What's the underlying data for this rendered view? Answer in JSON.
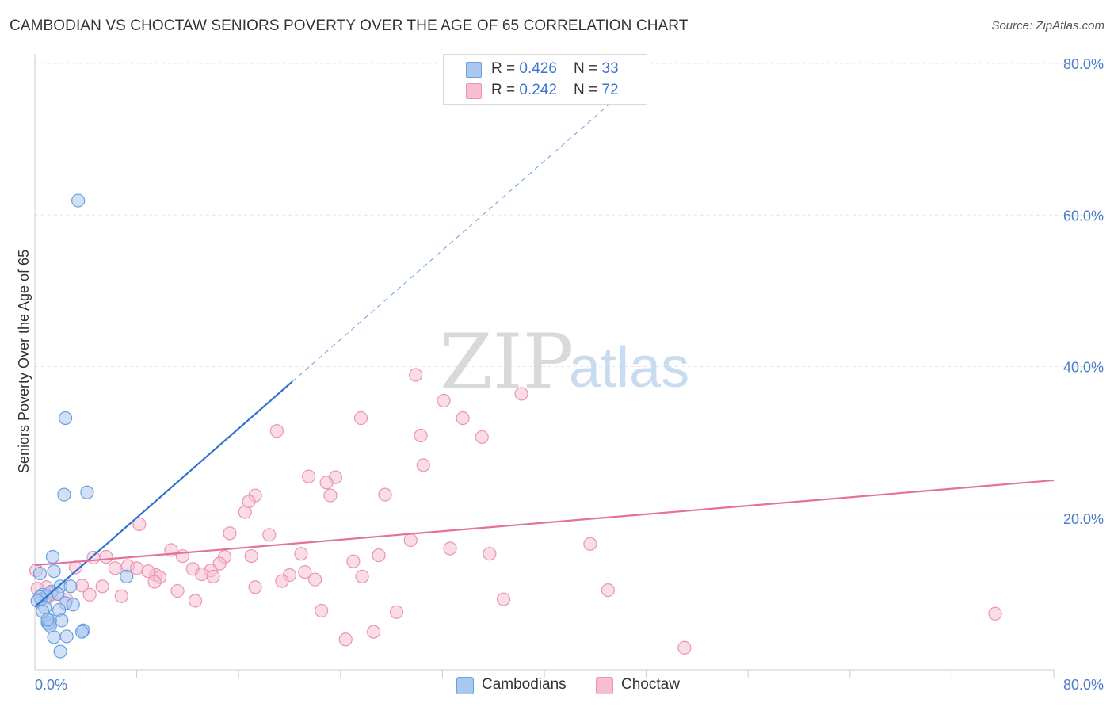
{
  "header": {
    "title": "CAMBODIAN VS CHOCTAW SENIORS POVERTY OVER THE AGE OF 65 CORRELATION CHART",
    "source": "Source: ZipAtlas.com"
  },
  "watermark": {
    "zip": "ZIP",
    "atlas": "atlas"
  },
  "legend": {
    "cambodians": {
      "r_label": "R = ",
      "r_value": "0.426",
      "n_label": "N = ",
      "n_value": "33"
    },
    "choctaw": {
      "r_label": "R = ",
      "r_value": "0.242",
      "n_label": "N = ",
      "n_value": "72"
    }
  },
  "bottom_legend": {
    "cambodians": "Cambodians",
    "choctaw": "Choctaw"
  },
  "colors": {
    "cambodians_fill": "#a9c8ef",
    "cambodians_stroke": "#6a9ee0",
    "cambodians_line": "#2f74d0",
    "choctaw_fill": "#f6bfd1",
    "choctaw_stroke": "#ec93b2",
    "choctaw_line": "#e2729a",
    "grid": "#e6e6e6",
    "axis_label": "#4a7cc7"
  },
  "chart_data": {
    "type": "scatter",
    "title": "CAMBODIAN VS CHOCTAW SENIORS POVERTY OVER THE AGE OF 65 CORRELATION CHART",
    "xlabel": "",
    "ylabel": "Seniors Poverty Over the Age of 65",
    "xlim": [
      0,
      80
    ],
    "ylim": [
      0,
      80
    ],
    "x_tick_labels": [
      "0.0%",
      "80.0%"
    ],
    "y_tick_labels": [
      "20.0%",
      "40.0%",
      "60.0%",
      "80.0%"
    ],
    "y_ticks": [
      20,
      40,
      60,
      80
    ],
    "x_minor_ticks": [
      8,
      16,
      24,
      32,
      40,
      48,
      56,
      64,
      72,
      80
    ],
    "grid": true,
    "series": [
      {
        "name": "Cambodians",
        "R": 0.426,
        "N": 33,
        "points": [
          [
            3.4,
            61.9
          ],
          [
            2.4,
            33.2
          ],
          [
            4.1,
            23.4
          ],
          [
            2.3,
            23.1
          ],
          [
            1.4,
            14.9
          ],
          [
            1.5,
            13.0
          ],
          [
            0.4,
            12.7
          ],
          [
            7.2,
            12.3
          ],
          [
            2.0,
            11.0
          ],
          [
            2.8,
            11.0
          ],
          [
            1.3,
            10.3
          ],
          [
            1.8,
            10.0
          ],
          [
            0.6,
            9.9
          ],
          [
            0.9,
            9.7
          ],
          [
            0.5,
            9.3
          ],
          [
            0.4,
            9.6
          ],
          [
            0.2,
            9.1
          ],
          [
            2.4,
            8.8
          ],
          [
            3.0,
            8.6
          ],
          [
            0.8,
            8.2
          ],
          [
            1.9,
            7.9
          ],
          [
            0.6,
            7.7
          ],
          [
            2.1,
            6.5
          ],
          [
            1.2,
            6.5
          ],
          [
            1.0,
            6.2
          ],
          [
            1.1,
            6.1
          ],
          [
            1.2,
            5.8
          ],
          [
            3.8,
            5.2
          ],
          [
            3.7,
            5.0
          ],
          [
            2.5,
            4.4
          ],
          [
            1.5,
            4.3
          ],
          [
            2.0,
            2.4
          ],
          [
            1.0,
            6.6
          ]
        ],
        "trend": {
          "x0": 0.0,
          "y0": 8.3,
          "x1": 20.2,
          "y1": 38.0,
          "x_dash_end": 45.0
        }
      },
      {
        "name": "Choctaw",
        "R": 0.242,
        "N": 72,
        "points": [
          [
            29.9,
            38.9
          ],
          [
            38.2,
            36.4
          ],
          [
            32.1,
            35.5
          ],
          [
            25.6,
            33.2
          ],
          [
            33.6,
            33.2
          ],
          [
            19.0,
            31.5
          ],
          [
            30.3,
            30.9
          ],
          [
            35.1,
            30.7
          ],
          [
            30.5,
            27.0
          ],
          [
            21.5,
            25.5
          ],
          [
            23.6,
            25.4
          ],
          [
            22.9,
            24.7
          ],
          [
            27.5,
            23.1
          ],
          [
            17.3,
            23.0
          ],
          [
            23.2,
            23.0
          ],
          [
            16.8,
            22.2
          ],
          [
            16.5,
            20.8
          ],
          [
            8.2,
            19.2
          ],
          [
            15.3,
            18.0
          ],
          [
            18.4,
            17.8
          ],
          [
            29.5,
            17.1
          ],
          [
            43.6,
            16.6
          ],
          [
            32.6,
            16.0
          ],
          [
            10.7,
            15.8
          ],
          [
            35.7,
            15.3
          ],
          [
            20.9,
            15.3
          ],
          [
            27.0,
            15.1
          ],
          [
            11.6,
            15.0
          ],
          [
            17.0,
            15.0
          ],
          [
            14.9,
            14.9
          ],
          [
            5.6,
            14.9
          ],
          [
            4.6,
            14.8
          ],
          [
            25.0,
            14.3
          ],
          [
            14.5,
            14.0
          ],
          [
            7.3,
            13.7
          ],
          [
            8.0,
            13.4
          ],
          [
            3.2,
            13.5
          ],
          [
            6.3,
            13.4
          ],
          [
            12.4,
            13.3
          ],
          [
            13.8,
            13.1
          ],
          [
            21.2,
            12.9
          ],
          [
            20.0,
            12.5
          ],
          [
            9.5,
            12.5
          ],
          [
            8.9,
            13.0
          ],
          [
            13.1,
            12.6
          ],
          [
            9.8,
            12.2
          ],
          [
            25.7,
            12.3
          ],
          [
            14.0,
            12.3
          ],
          [
            22.0,
            11.9
          ],
          [
            19.4,
            11.7
          ],
          [
            9.4,
            11.6
          ],
          [
            3.7,
            11.1
          ],
          [
            5.3,
            11.0
          ],
          [
            17.3,
            10.9
          ],
          [
            0.9,
            10.9
          ],
          [
            0.2,
            10.7
          ],
          [
            45.0,
            10.5
          ],
          [
            11.2,
            10.4
          ],
          [
            1.4,
            10.0
          ],
          [
            4.3,
            9.9
          ],
          [
            6.8,
            9.7
          ],
          [
            36.8,
            9.3
          ],
          [
            12.6,
            9.1
          ],
          [
            2.5,
            9.2
          ],
          [
            1.0,
            9.5
          ],
          [
            22.5,
            7.8
          ],
          [
            28.4,
            7.6
          ],
          [
            75.4,
            7.4
          ],
          [
            26.6,
            5.0
          ],
          [
            24.4,
            4.0
          ],
          [
            51.0,
            2.9
          ],
          [
            0.1,
            13.1
          ]
        ],
        "trend": {
          "x0": 0.0,
          "y0": 13.8,
          "x1": 80.0,
          "y1": 25.0
        }
      }
    ]
  }
}
